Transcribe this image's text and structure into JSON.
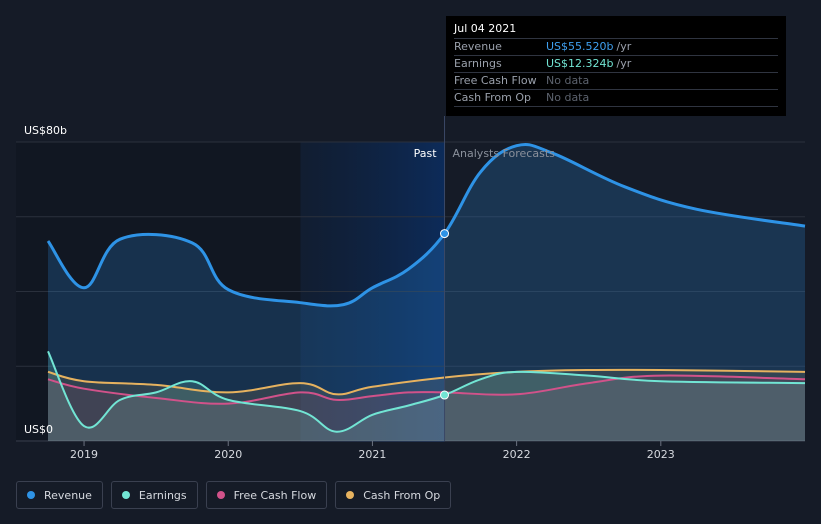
{
  "tooltip": {
    "date": "Jul 04 2021",
    "rows": [
      {
        "label": "Revenue",
        "value": "US$55.520b",
        "unit": "/yr"
      },
      {
        "label": "Earnings",
        "value": "US$12.324b",
        "unit": "/yr"
      },
      {
        "label": "Free Cash Flow",
        "value": "No data"
      },
      {
        "label": "Cash From Op",
        "value": "No data"
      }
    ]
  },
  "legend": [
    {
      "label": "Revenue",
      "color": "#2e93e6"
    },
    {
      "label": "Earnings",
      "color": "#72e5d4"
    },
    {
      "label": "Free Cash Flow",
      "color": "#d1528a"
    },
    {
      "label": "Cash From Op",
      "color": "#e6b25f"
    }
  ],
  "chart_data": {
    "type": "line",
    "y_axis_top_label": "US$80b",
    "y_axis_bottom_label": "US$0",
    "ylim": [
      0,
      80
    ],
    "xlim": [
      2018.75,
      2024.0
    ],
    "x_ticks": [
      2019,
      2020,
      2021,
      2022,
      2023
    ],
    "x_tick_labels": [
      "2019",
      "2020",
      "2021",
      "2022",
      "2023"
    ],
    "past_label": "Past",
    "forecast_label": "Analysts Forecasts",
    "divider_x": 2021.5,
    "highlight_start": 2020.5,
    "series": [
      {
        "name": "Revenue",
        "color": "#2e93e6",
        "x": [
          2018.75,
          2019.0,
          2019.25,
          2019.75,
          2020.0,
          2020.5,
          2020.8,
          2021.0,
          2021.25,
          2021.5,
          2021.75,
          2022.0,
          2022.25,
          2022.75,
          2023.25,
          2024.0
        ],
        "y": [
          53.5,
          41,
          54,
          53,
          40.5,
          37,
          36.5,
          41,
          46,
          55.5,
          72,
          79,
          77,
          68,
          62,
          57.5
        ]
      },
      {
        "name": "Earnings",
        "color": "#72e5d4",
        "x": [
          2018.75,
          2019.0,
          2019.25,
          2019.5,
          2019.75,
          2020.0,
          2020.5,
          2020.75,
          2021.0,
          2021.25,
          2021.5,
          2021.75,
          2022.0,
          2022.5,
          2023.0,
          2024.0
        ],
        "y": [
          24,
          4,
          11,
          13,
          16,
          11,
          8,
          2.5,
          7,
          9.5,
          12.3,
          16.5,
          18.5,
          17.5,
          16,
          15.5
        ]
      },
      {
        "name": "Free Cash Flow",
        "color": "#d1528a",
        "x": [
          2018.75,
          2019.0,
          2019.5,
          2020.0,
          2020.5,
          2020.75,
          2021.0,
          2021.25,
          2021.5,
          2022.0,
          2022.5,
          2023.0,
          2024.0
        ],
        "y": [
          16.5,
          14,
          11.5,
          10,
          13,
          11,
          12,
          13,
          13,
          12.5,
          15.5,
          17.5,
          16.5
        ]
      },
      {
        "name": "Cash From Op",
        "color": "#e6b25f",
        "x": [
          2018.75,
          2019.0,
          2019.5,
          2020.0,
          2020.5,
          2020.75,
          2021.0,
          2021.5,
          2022.0,
          2022.5,
          2023.0,
          2024.0
        ],
        "y": [
          18.5,
          16,
          15,
          13,
          15.5,
          12.5,
          14.5,
          17,
          18.5,
          19,
          19,
          18.5
        ]
      }
    ],
    "markers": [
      {
        "series": "Revenue",
        "x": 2021.5,
        "y": 55.5
      },
      {
        "series": "Earnings",
        "x": 2021.5,
        "y": 12.3
      }
    ]
  }
}
